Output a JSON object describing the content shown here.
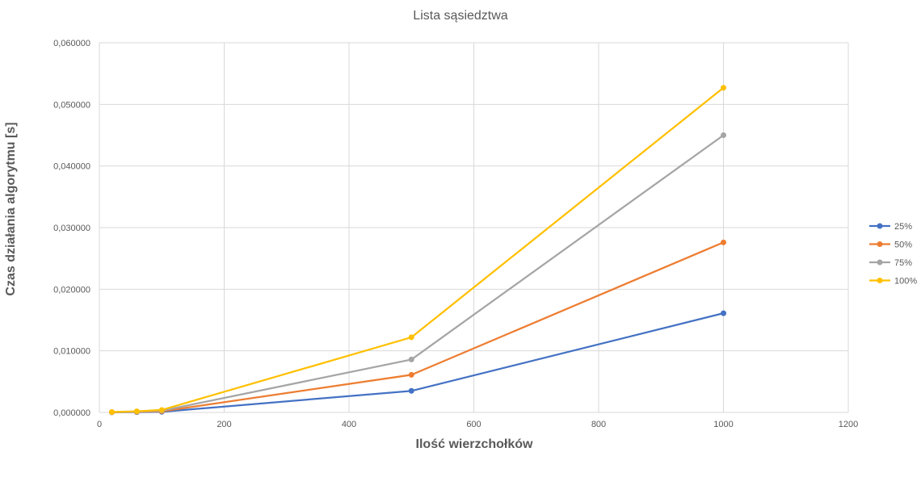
{
  "chart_data": {
    "type": "line",
    "title": "Lista sąsiedztwa",
    "xlabel": "Ilość wierzchołków",
    "ylabel": "Czas działania algorytmu [s]",
    "xlim": [
      0,
      1200
    ],
    "ylim": [
      0,
      0.06
    ],
    "xticks": [
      0,
      200,
      400,
      600,
      800,
      1000,
      1200
    ],
    "xtick_labels": [
      "0",
      "200",
      "400",
      "600",
      "800",
      "1000",
      "1200"
    ],
    "yticks": [
      0,
      0.01,
      0.02,
      0.03,
      0.04,
      0.05,
      0.06
    ],
    "ytick_labels": [
      "0,000000",
      "0,010000",
      "0,020000",
      "0,030000",
      "0,040000",
      "0,050000",
      "0,060000"
    ],
    "grid": true,
    "legend_position": "right",
    "x": [
      20,
      60,
      100,
      500,
      1000
    ],
    "series": [
      {
        "name": "25%",
        "color": "#4472C4",
        "values": [
          2e-05,
          5e-05,
          0.0001,
          0.0035,
          0.0161
        ]
      },
      {
        "name": "50%",
        "color": "#ED7D31",
        "values": [
          3e-05,
          0.0001,
          0.00018,
          0.0061,
          0.0276
        ]
      },
      {
        "name": "75%",
        "color": "#A5A5A5",
        "values": [
          5e-05,
          0.00013,
          0.00028,
          0.0086,
          0.045
        ]
      },
      {
        "name": "100%",
        "color": "#FFC000",
        "values": [
          7e-05,
          0.00018,
          0.0004,
          0.0122,
          0.0527
        ]
      }
    ]
  }
}
